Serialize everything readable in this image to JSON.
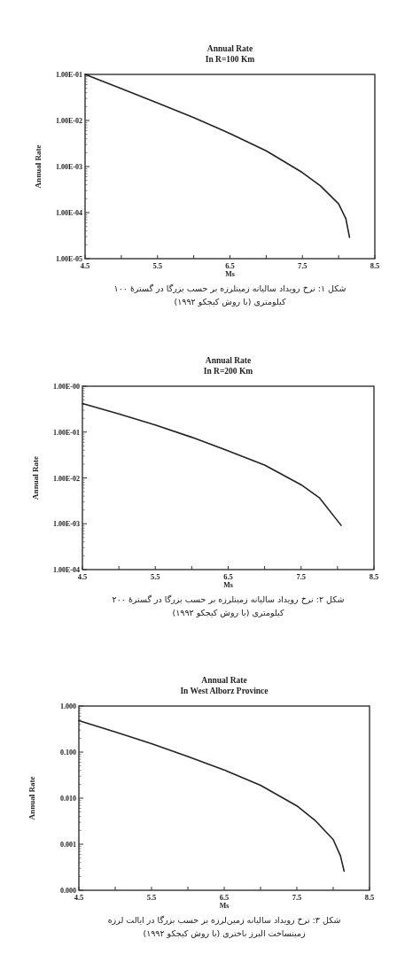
{
  "chart_data": [
    {
      "type": "line",
      "title": "Annual Rate",
      "subtitle": "In R=100 Km",
      "xlabel": "Ms",
      "ylabel": "Annual Rate",
      "log": "y",
      "color": "#222222",
      "x": [
        4.5,
        5.0,
        5.5,
        6.0,
        6.5,
        7.0,
        7.5,
        7.75,
        8.0,
        8.1,
        8.15
      ],
      "values": [
        0.1,
        0.049,
        0.024,
        0.0115,
        0.0052,
        0.0022,
        0.00074,
        0.00038,
        0.000155,
        7.4e-05,
        2.9e-05
      ],
      "xlim": [
        4.5,
        8.5
      ],
      "ylim": [
        1e-05,
        0.1
      ],
      "xticks": [
        4.5,
        {
          "value": 5,
          "label": null
        },
        5.5,
        {
          "value": 6,
          "label": null
        },
        6.5,
        {
          "value": 7,
          "label": null
        },
        7.5,
        {
          "value": 8,
          "label": null
        },
        8.5
      ],
      "yticks": [
        {
          "value": 1e-05,
          "label": "1.00E-05"
        },
        {
          "value": 0.0001,
          "label": "1.00E-04"
        },
        {
          "value": 0.001,
          "label": "1.00E-03"
        },
        {
          "value": 0.01,
          "label": "1.00E-02"
        },
        {
          "value": 0.1,
          "label": "1.00E-01"
        }
      ],
      "annotations": [
        "شکل ۱: نرخ رویداد سالیانه زمینلرزه بر حسب بزرگا در گسترهٔ ۱۰۰ کیلومتری (با روش کیجکو ۱۹۹۲)"
      ]
    },
    {
      "type": "line",
      "title": "Annual Rate",
      "subtitle": "In R=200 Km",
      "xlabel": "Ms",
      "ylabel": "Annual Rate",
      "log": "y",
      "color": "#222222",
      "x": [
        4.5,
        5.0,
        5.5,
        6.0,
        6.5,
        7.0,
        7.5,
        7.75,
        8.05
      ],
      "values": [
        0.42,
        0.25,
        0.143,
        0.077,
        0.039,
        0.019,
        0.0071,
        0.0037,
        0.00092
      ],
      "xlim": [
        4.5,
        8.5
      ],
      "ylim": [
        0.0001,
        1
      ],
      "xticks": [
        4.5,
        {
          "value": 5,
          "label": null
        },
        5.5,
        {
          "value": 6,
          "label": null
        },
        6.5,
        {
          "value": 7,
          "label": null
        },
        7.5,
        {
          "value": 8,
          "label": null
        },
        8.5
      ],
      "yticks": [
        {
          "value": 0.0001,
          "label": "1.00E-04"
        },
        {
          "value": 0.001,
          "label": "1.00E-03"
        },
        {
          "value": 0.01,
          "label": "1.00E-02"
        },
        {
          "value": 0.1,
          "label": "1.00E-01"
        },
        {
          "value": 1,
          "label": "1.00E-00"
        }
      ],
      "annotations": [
        "شکل ۲: نرخ رویداد سالیانه زمینلرزه بر حسب بزرگا در گسترهٔ ۲۰۰ کیلومتری (با روش کیجکو ۱۹۹۲)"
      ]
    },
    {
      "type": "line",
      "title": "Annual Rate",
      "subtitle": "In West Alborz Province",
      "xlabel": "Ms",
      "ylabel": "Annual Rate",
      "log": "y",
      "color": "#222222",
      "x": [
        4.5,
        5.0,
        5.5,
        6.0,
        6.5,
        7.0,
        7.5,
        7.75,
        8.0,
        8.1,
        8.15
      ],
      "values": [
        0.48,
        0.275,
        0.153,
        0.08,
        0.041,
        0.019,
        0.0068,
        0.0033,
        0.00126,
        0.00056,
        0.00026
      ],
      "xlim": [
        4.5,
        8.5
      ],
      "ylim": [
        0.0001,
        1
      ],
      "xticks": [
        4.5,
        {
          "value": 5,
          "label": null
        },
        5.5,
        {
          "value": 6,
          "label": null
        },
        6.5,
        {
          "value": 7,
          "label": null
        },
        7.5,
        {
          "value": 8,
          "label": null
        },
        8.5
      ],
      "yticks": [
        {
          "value": 0.0001,
          "label": "0.000"
        },
        {
          "value": 0.001,
          "label": "0.001"
        },
        {
          "value": 0.01,
          "label": "0.010"
        },
        {
          "value": 0.1,
          "label": "0.100"
        },
        {
          "value": 1,
          "label": "1.000"
        }
      ],
      "annotations": [
        "شکل ۳: نرخ رویداد سالیانه زمین‌لرزه بر حسب بزرگا در ایالت لرزه زمینساخت البرز باختری (با روش کیجکو ۱۹۹۲)"
      ]
    }
  ]
}
